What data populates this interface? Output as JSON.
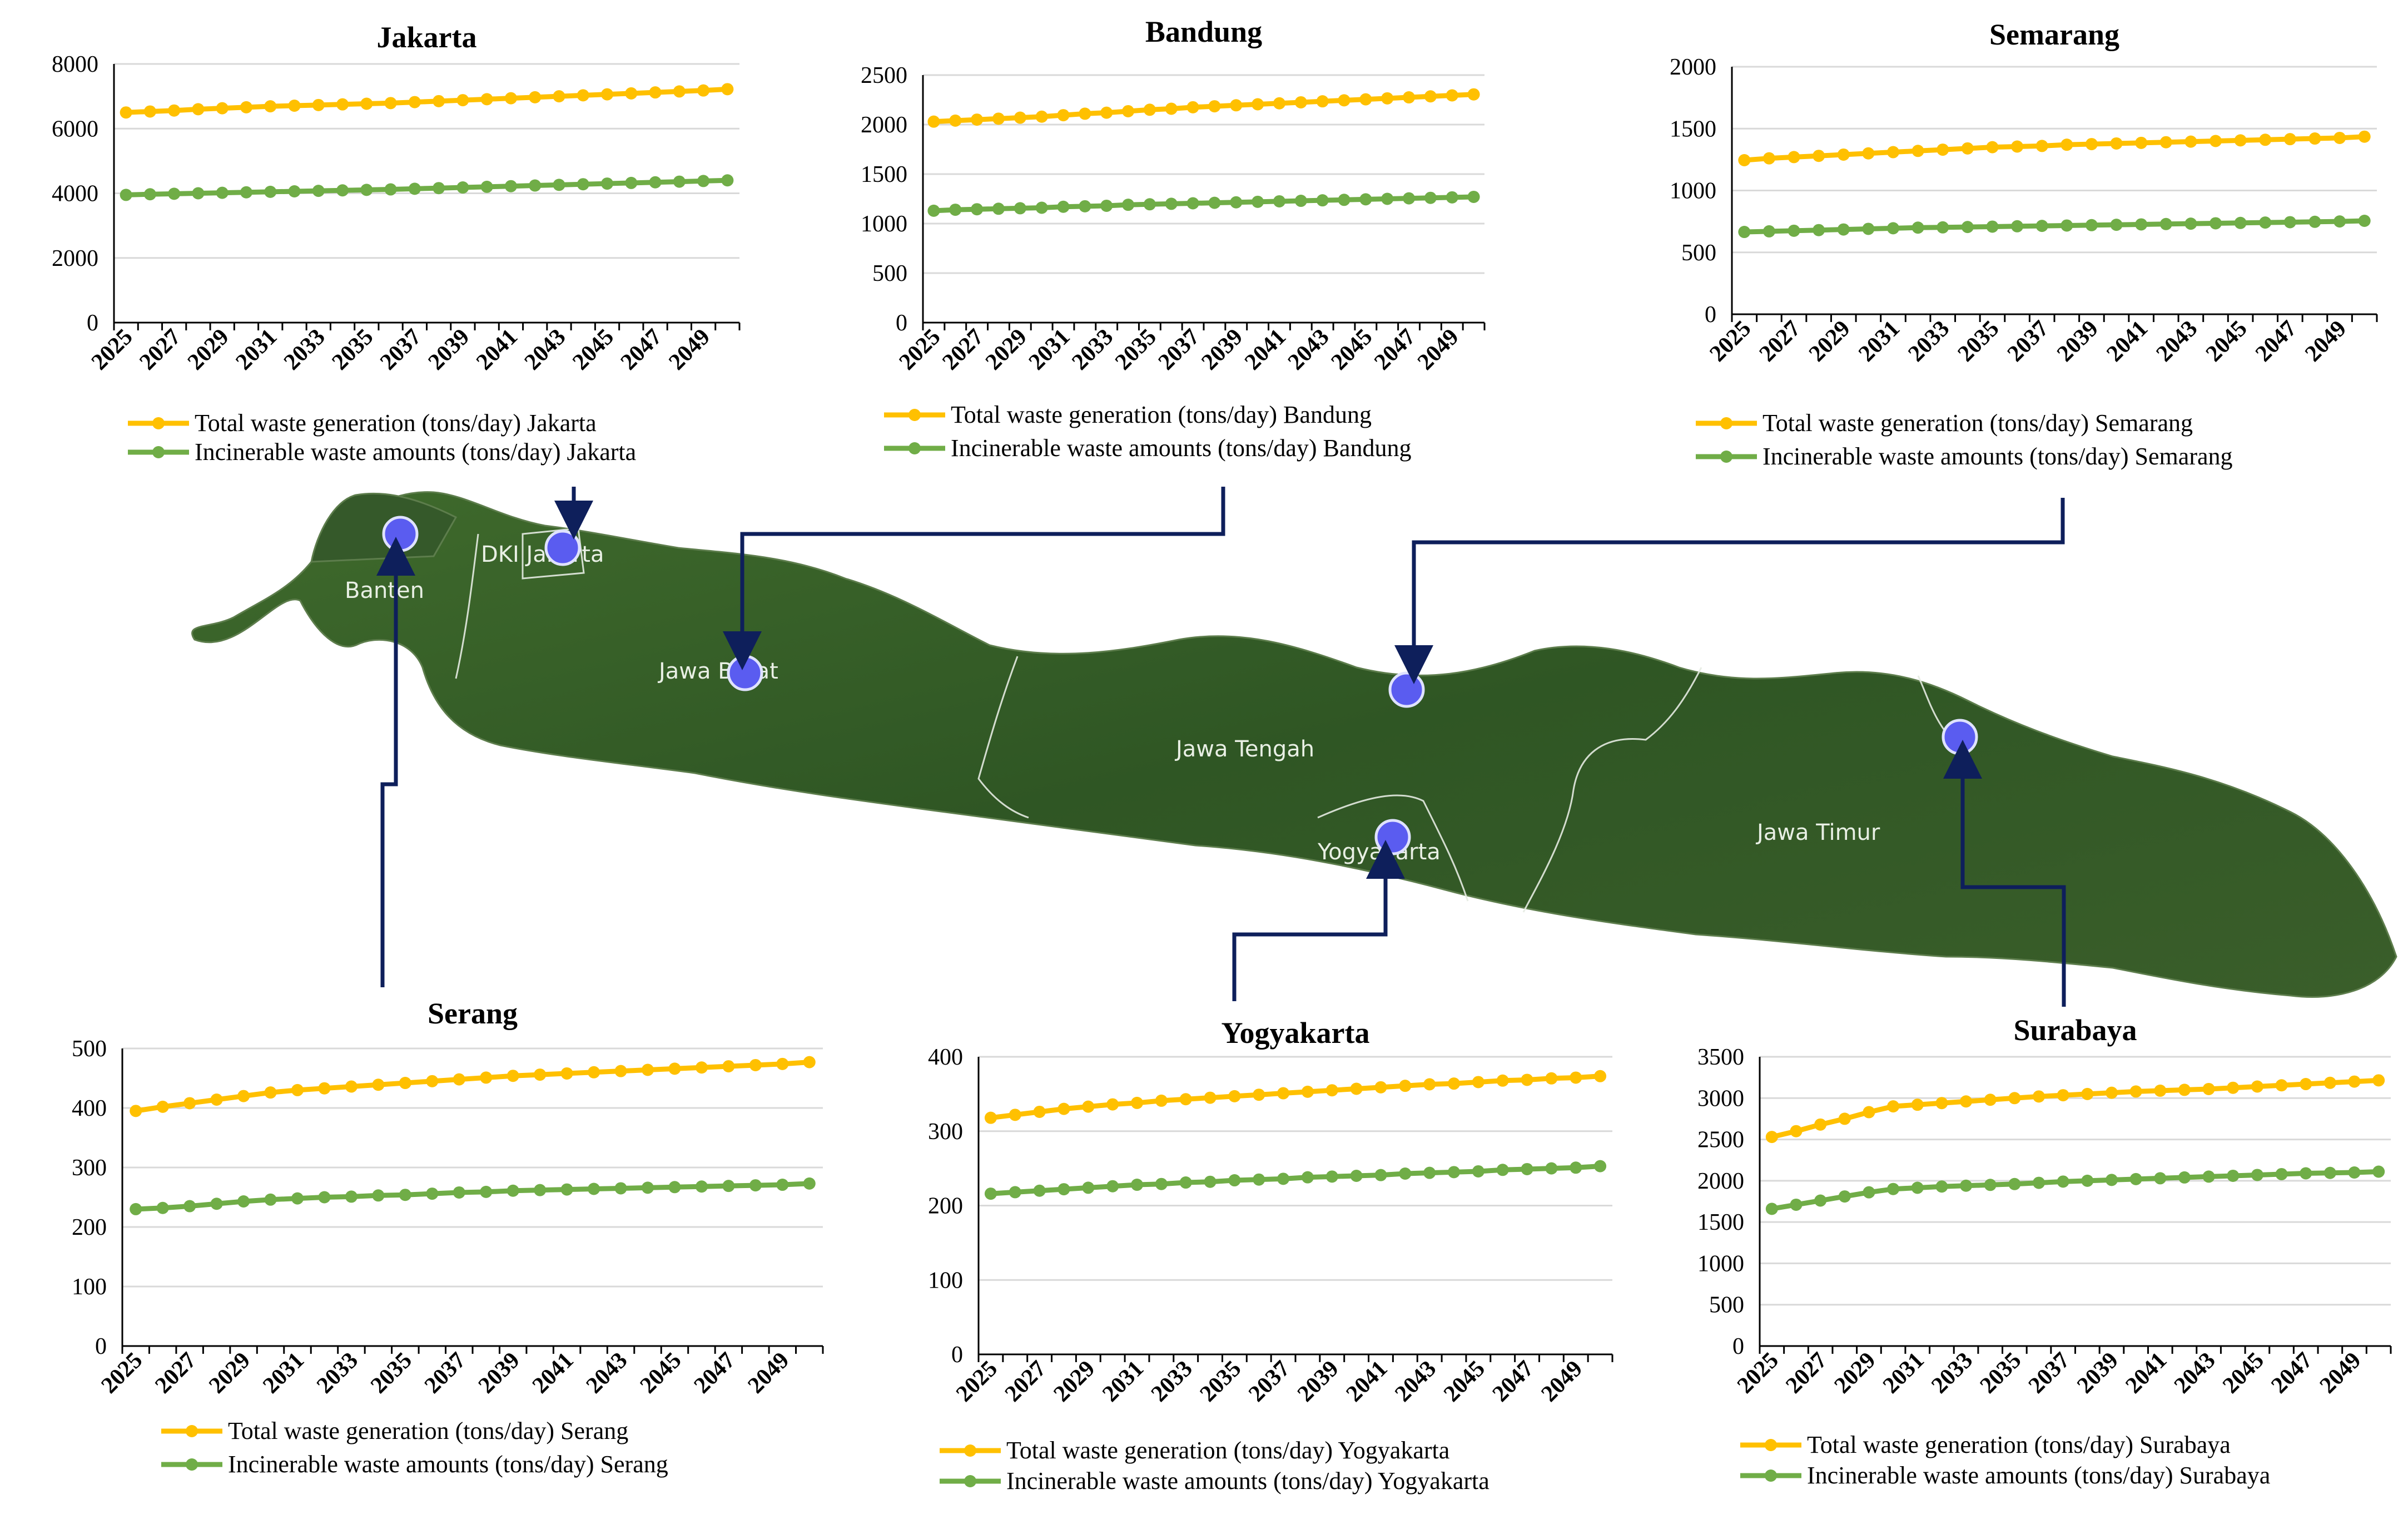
{
  "colors": {
    "total": "#FFC000",
    "incinerable": "#70AD47",
    "connector": "#0E1F5B",
    "marker": "#5A5CF0",
    "grid": "#D9D9D9"
  },
  "map": {
    "regions": [
      "Banten",
      "DKI Jakarta",
      "Jawa Barat",
      "Jawa Tengah",
      "Yogyakarta",
      "Jawa Timur"
    ]
  },
  "chart_data": [
    {
      "type": "line",
      "title": "Jakarta",
      "x": [
        2025,
        2026,
        2027,
        2028,
        2029,
        2030,
        2031,
        2032,
        2033,
        2034,
        2035,
        2036,
        2037,
        2038,
        2039,
        2040,
        2041,
        2042,
        2043,
        2044,
        2045,
        2046,
        2047,
        2048,
        2049,
        2050
      ],
      "xticks": [
        "2025",
        "2027",
        "2029",
        "2031",
        "2033",
        "2035",
        "2037",
        "2039",
        "2041",
        "2043",
        "2045",
        "2047",
        "2049"
      ],
      "ylim": [
        0,
        8000
      ],
      "yticks": [
        "0",
        "2000",
        "4000",
        "6000",
        "8000"
      ],
      "series": [
        {
          "name": "Total waste generation (tons/day) Jakarta",
          "color_key": "total",
          "values": [
            6500,
            6530,
            6560,
            6600,
            6630,
            6660,
            6690,
            6710,
            6730,
            6750,
            6770,
            6790,
            6820,
            6850,
            6880,
            6910,
            6940,
            6970,
            7000,
            7030,
            7060,
            7090,
            7120,
            7150,
            7180,
            7220
          ]
        },
        {
          "name": "Incinerable waste amounts (tons/day) Jakarta",
          "color_key": "incinerable",
          "values": [
            3950,
            3970,
            3985,
            4000,
            4015,
            4030,
            4045,
            4060,
            4075,
            4090,
            4105,
            4120,
            4140,
            4160,
            4180,
            4200,
            4220,
            4240,
            4260,
            4280,
            4300,
            4320,
            4340,
            4360,
            4380,
            4400
          ]
        }
      ]
    },
    {
      "type": "line",
      "title": "Bandung",
      "x": [
        2025,
        2026,
        2027,
        2028,
        2029,
        2030,
        2031,
        2032,
        2033,
        2034,
        2035,
        2036,
        2037,
        2038,
        2039,
        2040,
        2041,
        2042,
        2043,
        2044,
        2045,
        2046,
        2047,
        2048,
        2049,
        2050
      ],
      "xticks": [
        "2025",
        "2027",
        "2029",
        "2031",
        "2033",
        "2035",
        "2037",
        "2039",
        "2041",
        "2043",
        "2045",
        "2047",
        "2049"
      ],
      "ylim": [
        0,
        2500
      ],
      "yticks": [
        "0",
        "500",
        "1000",
        "1500",
        "2000",
        "2500"
      ],
      "series": [
        {
          "name": "Total waste generation (tons/day) Bandung",
          "color_key": "total",
          "values": [
            2030,
            2040,
            2050,
            2060,
            2070,
            2080,
            2095,
            2110,
            2120,
            2135,
            2150,
            2160,
            2175,
            2185,
            2195,
            2205,
            2215,
            2225,
            2235,
            2245,
            2255,
            2265,
            2275,
            2285,
            2295,
            2305
          ]
        },
        {
          "name": "Incinerable waste amounts (tons/day) Bandung",
          "color_key": "incinerable",
          "values": [
            1130,
            1140,
            1145,
            1150,
            1155,
            1160,
            1170,
            1175,
            1180,
            1190,
            1195,
            1200,
            1205,
            1210,
            1215,
            1220,
            1225,
            1230,
            1235,
            1240,
            1245,
            1250,
            1255,
            1260,
            1265,
            1270
          ]
        }
      ]
    },
    {
      "type": "line",
      "title": "Semarang",
      "x": [
        2025,
        2026,
        2027,
        2028,
        2029,
        2030,
        2031,
        2032,
        2033,
        2034,
        2035,
        2036,
        2037,
        2038,
        2039,
        2040,
        2041,
        2042,
        2043,
        2044,
        2045,
        2046,
        2047,
        2048,
        2049,
        2050
      ],
      "xticks": [
        "2025",
        "2027",
        "2029",
        "2031",
        "2033",
        "2035",
        "2037",
        "2039",
        "2041",
        "2043",
        "2045",
        "2047",
        "2049"
      ],
      "ylim": [
        0,
        2000
      ],
      "yticks": [
        "0",
        "500",
        "1000",
        "1500",
        "2000"
      ],
      "series": [
        {
          "name": "Total waste generation (tons/day) Semarang",
          "color_key": "total",
          "values": [
            1245,
            1260,
            1270,
            1280,
            1290,
            1300,
            1310,
            1320,
            1330,
            1340,
            1350,
            1355,
            1360,
            1370,
            1375,
            1380,
            1385,
            1390,
            1395,
            1400,
            1405,
            1410,
            1415,
            1420,
            1425,
            1435
          ]
        },
        {
          "name": "Incinerable waste amounts (tons/day) Semarang",
          "color_key": "incinerable",
          "values": [
            665,
            670,
            675,
            680,
            685,
            690,
            695,
            700,
            702,
            705,
            708,
            711,
            714,
            717,
            720,
            723,
            726,
            729,
            732,
            735,
            738,
            741,
            744,
            747,
            750,
            755
          ]
        }
      ]
    },
    {
      "type": "line",
      "title": "Serang",
      "x": [
        2025,
        2026,
        2027,
        2028,
        2029,
        2030,
        2031,
        2032,
        2033,
        2034,
        2035,
        2036,
        2037,
        2038,
        2039,
        2040,
        2041,
        2042,
        2043,
        2044,
        2045,
        2046,
        2047,
        2048,
        2049,
        2050
      ],
      "xticks": [
        "2025",
        "2027",
        "2029",
        "2031",
        "2033",
        "2035",
        "2037",
        "2039",
        "2041",
        "2043",
        "2045",
        "2047",
        "2049"
      ],
      "ylim": [
        0,
        500
      ],
      "yticks": [
        "0",
        "100",
        "200",
        "300",
        "400",
        "500"
      ],
      "series": [
        {
          "name": "Total waste generation (tons/day) Serang",
          "color_key": "total",
          "values": [
            395,
            402,
            408,
            414,
            420,
            426,
            430,
            433,
            436,
            439,
            442,
            445,
            448,
            451,
            454,
            456,
            458,
            460,
            462,
            464,
            466,
            468,
            470,
            472,
            474,
            477
          ]
        },
        {
          "name": "Incinerable waste amounts (tons/day) Serang",
          "color_key": "incinerable",
          "values": [
            230,
            232,
            235,
            239,
            243,
            246,
            248,
            250,
            251,
            253,
            254,
            256,
            258,
            259,
            261,
            262,
            263,
            264,
            265,
            266,
            267,
            268,
            269,
            270,
            271,
            273
          ]
        }
      ]
    },
    {
      "type": "line",
      "title": "Yogyakarta",
      "x": [
        2025,
        2026,
        2027,
        2028,
        2029,
        2030,
        2031,
        2032,
        2033,
        2034,
        2035,
        2036,
        2037,
        2038,
        2039,
        2040,
        2041,
        2042,
        2043,
        2044,
        2045,
        2046,
        2047,
        2048,
        2049,
        2050
      ],
      "xticks": [
        "2025",
        "2027",
        "2029",
        "2031",
        "2033",
        "2035",
        "2037",
        "2039",
        "2041",
        "2043",
        "2045",
        "2047",
        "2049"
      ],
      "ylim": [
        0,
        400
      ],
      "yticks": [
        "0",
        "100",
        "200",
        "300",
        "400"
      ],
      "series": [
        {
          "name": "Total waste generation (tons/day) Yogyakarta",
          "color_key": "total",
          "values": [
            318,
            322,
            326,
            330,
            333,
            336,
            338,
            341,
            343,
            345,
            347,
            349,
            351,
            353,
            355,
            357,
            359,
            361,
            363,
            364,
            366,
            368,
            369,
            371,
            372,
            374
          ]
        },
        {
          "name": "Incinerable waste amounts (tons/day) Yogyakarta",
          "color_key": "incinerable",
          "values": [
            216,
            218,
            220,
            222,
            224,
            226,
            228,
            229,
            231,
            232,
            234,
            235,
            236,
            238,
            239,
            240,
            241,
            243,
            244,
            245,
            246,
            248,
            249,
            250,
            251,
            253
          ]
        }
      ]
    },
    {
      "type": "line",
      "title": "Surabaya",
      "x": [
        2025,
        2026,
        2027,
        2028,
        2029,
        2030,
        2031,
        2032,
        2033,
        2034,
        2035,
        2036,
        2037,
        2038,
        2039,
        2040,
        2041,
        2042,
        2043,
        2044,
        2045,
        2046,
        2047,
        2048,
        2049,
        2050
      ],
      "xticks": [
        "2025",
        "2027",
        "2029",
        "2031",
        "2033",
        "2035",
        "2037",
        "2039",
        "2041",
        "2043",
        "2045",
        "2047",
        "2049"
      ],
      "ylim": [
        0,
        3500
      ],
      "yticks": [
        "0",
        "500",
        "1000",
        "1500",
        "2000",
        "2500",
        "3000",
        "3500"
      ],
      "series": [
        {
          "name": "Total waste generation (tons/day) Surabaya",
          "color_key": "total",
          "values": [
            2530,
            2600,
            2680,
            2750,
            2830,
            2900,
            2920,
            2940,
            2960,
            2980,
            3000,
            3020,
            3035,
            3050,
            3065,
            3080,
            3090,
            3100,
            3110,
            3125,
            3140,
            3155,
            3170,
            3185,
            3200,
            3215
          ]
        },
        {
          "name": "Incinerable waste amounts (tons/day) Surabaya",
          "color_key": "incinerable",
          "values": [
            1660,
            1710,
            1760,
            1810,
            1860,
            1900,
            1915,
            1930,
            1940,
            1950,
            1960,
            1975,
            1990,
            2000,
            2010,
            2020,
            2030,
            2040,
            2050,
            2060,
            2070,
            2080,
            2090,
            2095,
            2100,
            2110
          ]
        }
      ]
    }
  ]
}
